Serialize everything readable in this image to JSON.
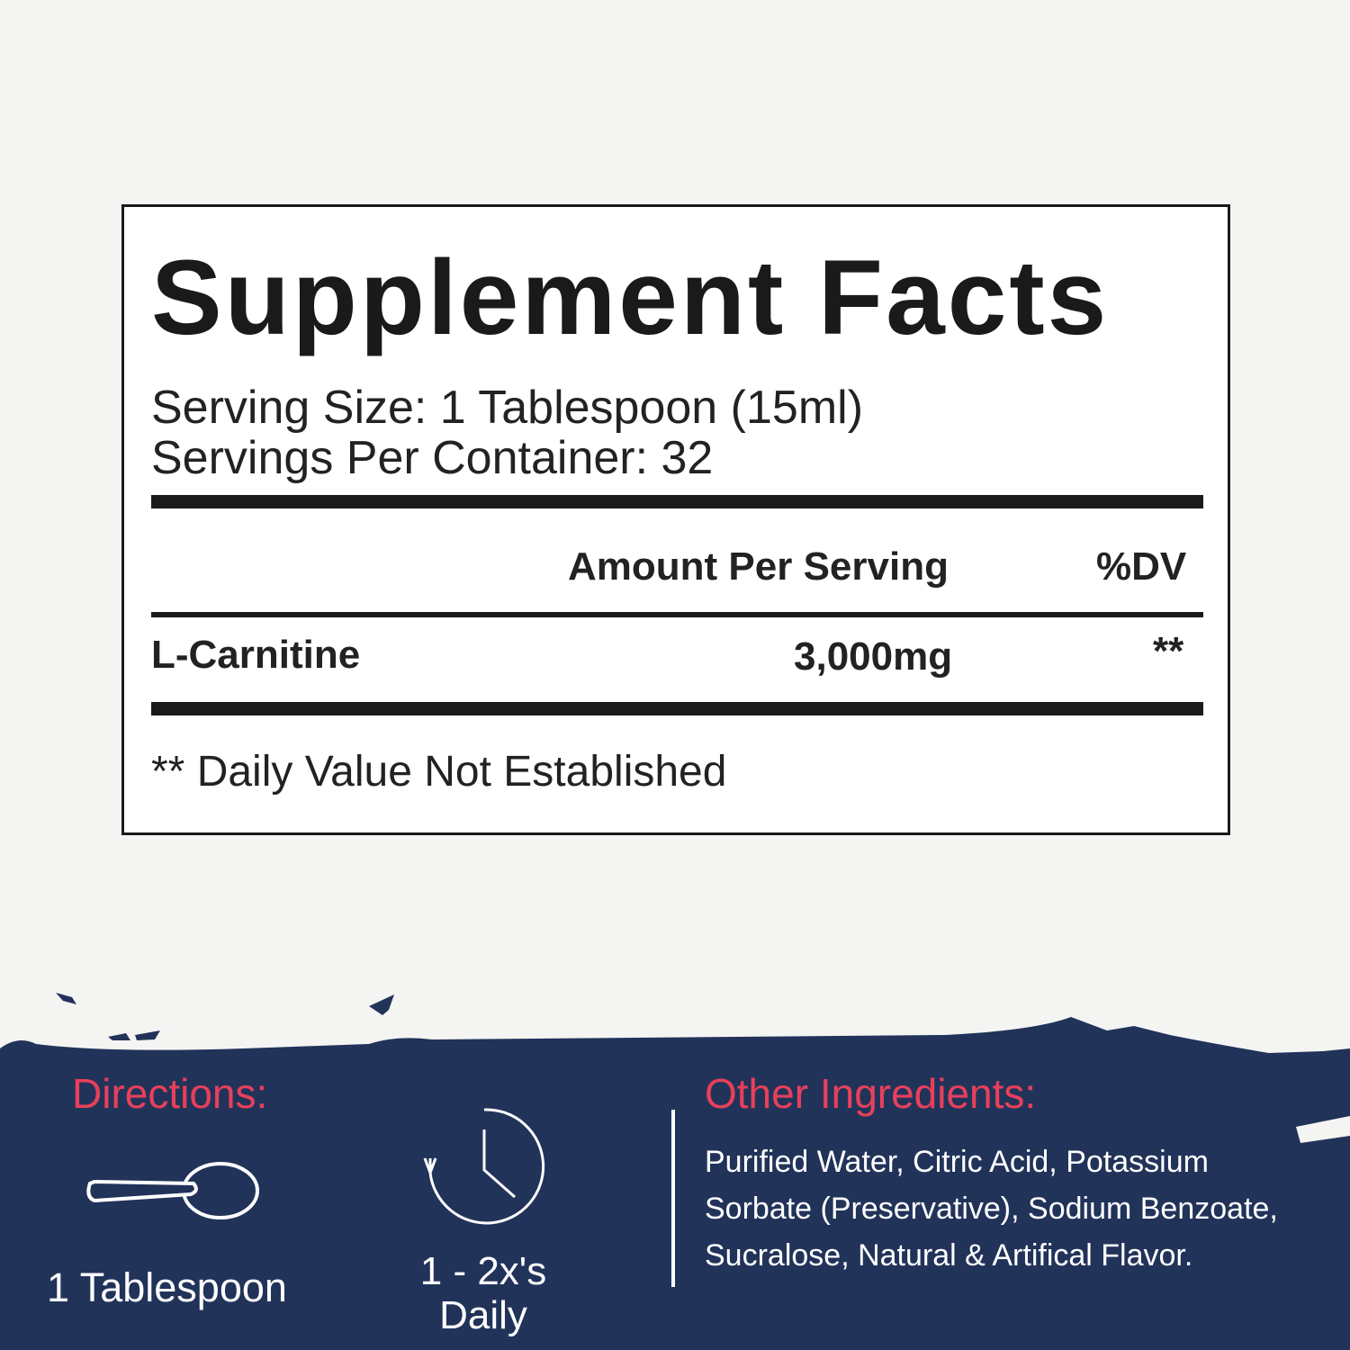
{
  "facts": {
    "title": "Supplement Facts",
    "serving_size": "Serving Size: 1 Tablespoon (15ml)",
    "servings_per_container": "Servings Per Container: 32",
    "header_amount": "Amount Per Serving",
    "header_dv": "%DV",
    "rows": [
      {
        "name": "L-Carnitine",
        "amount": "3,000mg",
        "dv": "**"
      }
    ],
    "footnote": "** Daily Value Not Established"
  },
  "directions": {
    "heading": "Directions:",
    "items": [
      {
        "icon": "spoon-icon",
        "label": "1 Tablespoon"
      },
      {
        "icon": "clock-repeat-icon",
        "label_line1": "1 - 2x's",
        "label_line2": "Daily"
      }
    ]
  },
  "other_ingredients": {
    "heading": "Other Ingredients:",
    "text": "Purified Water, Citric Acid, Potassium Sorbate (Preservative), Sodium Benzoate, Sucralose, Natural & Artifical Flavor."
  },
  "colors": {
    "navy": "#22335a",
    "accent": "#e8405a",
    "background": "#f4f4f2"
  }
}
